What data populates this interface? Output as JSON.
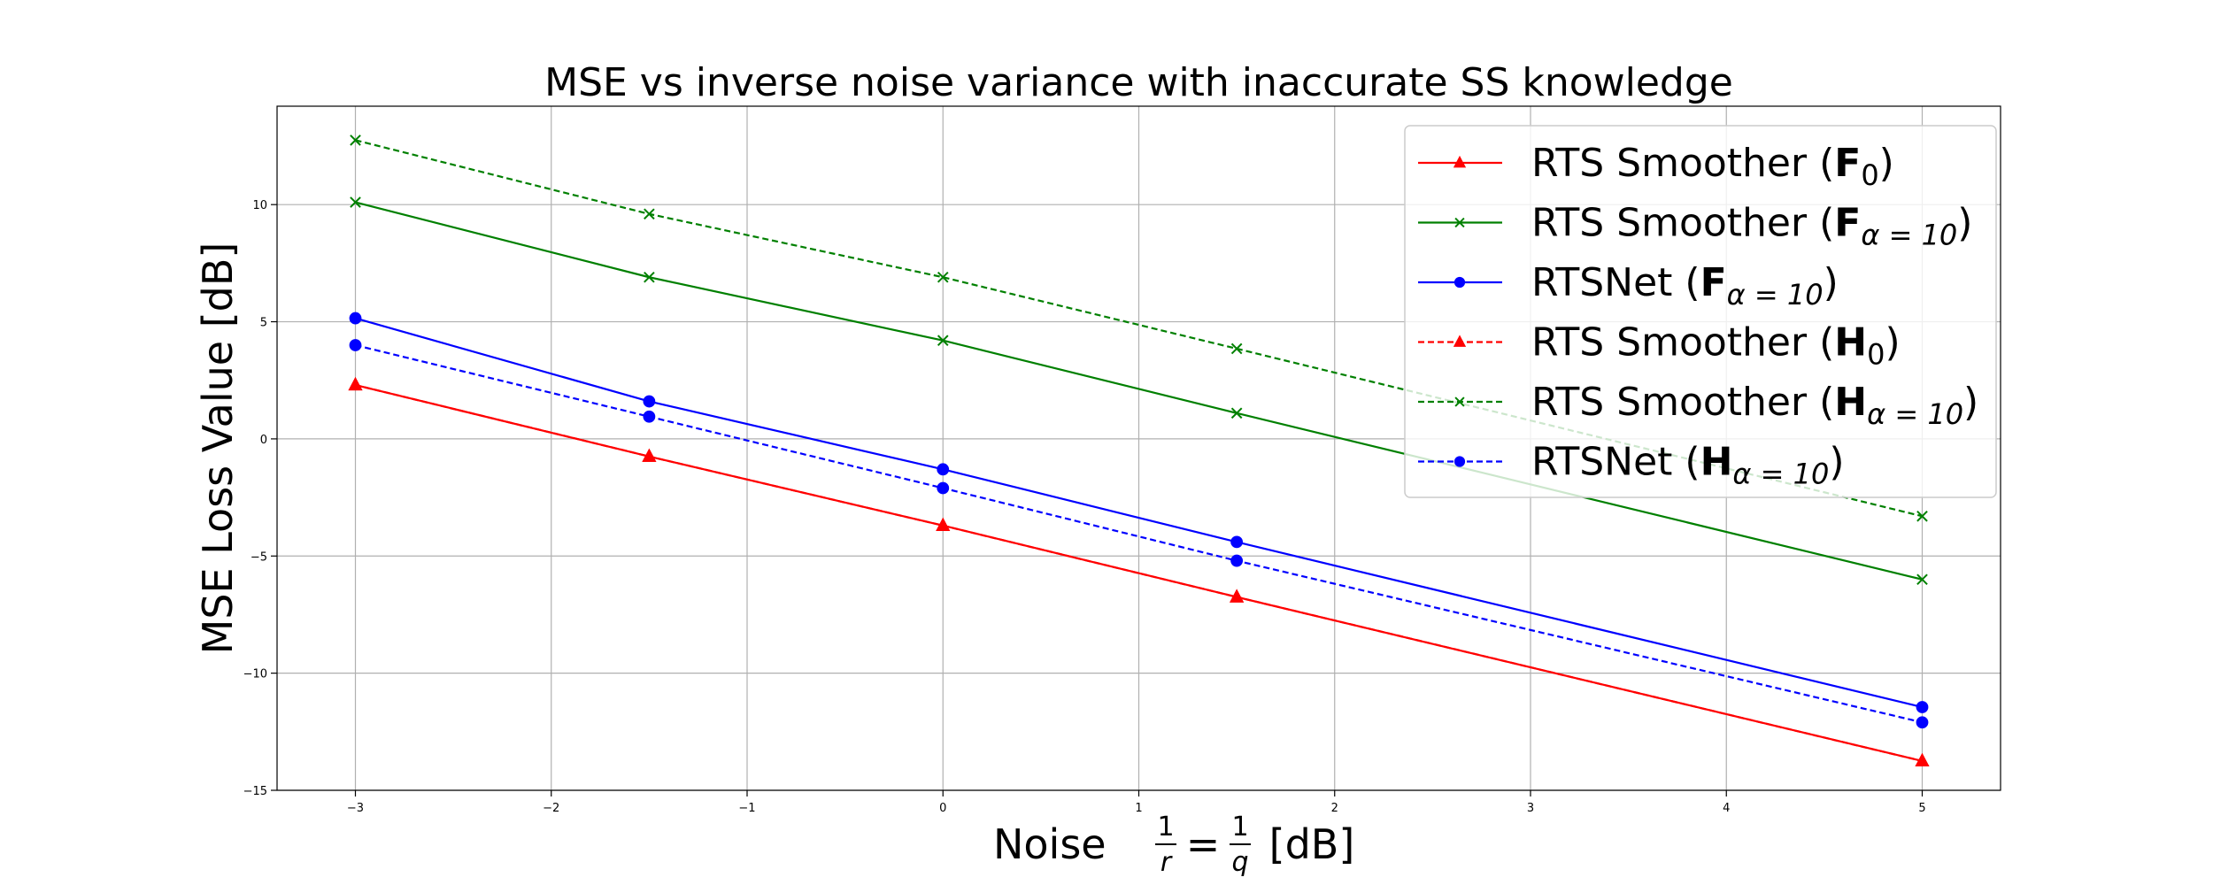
{
  "chart_data": {
    "type": "line",
    "title": "MSE vs inverse noise variance with inaccurate SS knowledge",
    "xlabel": {
      "prefix": "Noise ",
      "frac1_num": "1",
      "frac1_den": "r",
      "equals": "=",
      "frac2_num": "1",
      "frac2_den": "q",
      "suffix": " [dB]"
    },
    "ylabel": "MSE Loss Value [dB]",
    "xlim": [
      -3.4,
      5.4
    ],
    "ylim": [
      -15.0,
      14.2
    ],
    "xticks": [
      -3,
      -2,
      -1,
      0,
      1,
      2,
      3,
      4,
      5
    ],
    "xtick_labels": [
      "−3",
      "−2",
      "−1",
      "0",
      "1",
      "2",
      "3",
      "4",
      "5"
    ],
    "yticks": [
      -15,
      -10,
      -5,
      0,
      5,
      10
    ],
    "ytick_labels": [
      "−15",
      "−10",
      "−5",
      "0",
      "5",
      "10"
    ],
    "grid": true,
    "legend_position": "top-right",
    "x": [
      -3,
      -1.5,
      0,
      1.5,
      5
    ],
    "series": [
      {
        "name_parts": {
          "prefix": "RTS Smoother (",
          "bold": "F",
          "sub": "0",
          "suffix": ")"
        },
        "color": "#ff0000",
        "linestyle": "solid",
        "marker": "triangle",
        "values": [
          2.3,
          -0.75,
          -3.7,
          -6.75,
          -13.75
        ]
      },
      {
        "name_parts": {
          "prefix": "RTS Smoother (",
          "bold": "F",
          "sub": "α = 10",
          "suffix": ")"
        },
        "color": "#008000",
        "linestyle": "solid",
        "marker": "x",
        "values": [
          10.1,
          6.9,
          4.2,
          1.1,
          -6.0
        ]
      },
      {
        "name_parts": {
          "prefix": "RTSNet (",
          "bold": "F",
          "sub": "α = 10",
          "suffix": ")"
        },
        "color": "#0000ff",
        "linestyle": "solid",
        "marker": "circle",
        "values": [
          5.15,
          1.6,
          -1.3,
          -4.4,
          -11.45
        ]
      },
      {
        "name_parts": {
          "prefix": "RTS Smoother (",
          "bold": "H",
          "sub": "0",
          "suffix": ")"
        },
        "color": "#ff0000",
        "linestyle": "dashed",
        "marker": "triangle",
        "values": [
          2.3,
          -0.75,
          -3.7,
          -6.75,
          -13.75
        ]
      },
      {
        "name_parts": {
          "prefix": "RTS Smoother (",
          "bold": "H",
          "sub": "α = 10",
          "suffix": ")"
        },
        "color": "#008000",
        "linestyle": "dashed",
        "marker": "x",
        "values": [
          12.75,
          9.6,
          6.9,
          3.85,
          -3.3
        ]
      },
      {
        "name_parts": {
          "prefix": "RTSNet (",
          "bold": "H",
          "sub": "α = 10",
          "suffix": ")"
        },
        "color": "#0000ff",
        "linestyle": "dashed",
        "marker": "circle",
        "values": [
          4.0,
          0.95,
          -2.1,
          -5.2,
          -12.1
        ]
      }
    ]
  }
}
